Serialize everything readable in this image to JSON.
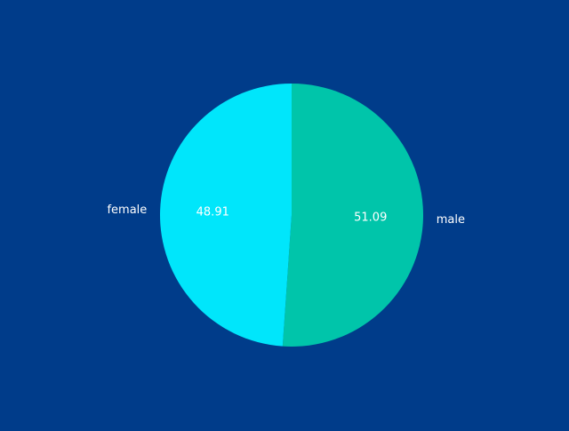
{
  "chart_data": {
    "type": "pie",
    "background": "#003c8a",
    "title": "",
    "start_angle_deg": 90,
    "direction": "clockwise",
    "slices": [
      {
        "label": "male",
        "value": 51.09,
        "display": "51.09",
        "color": "#00c5aa"
      },
      {
        "label": "female",
        "value": 48.91,
        "display": "48.91",
        "color": "#00e6fb"
      }
    ]
  }
}
